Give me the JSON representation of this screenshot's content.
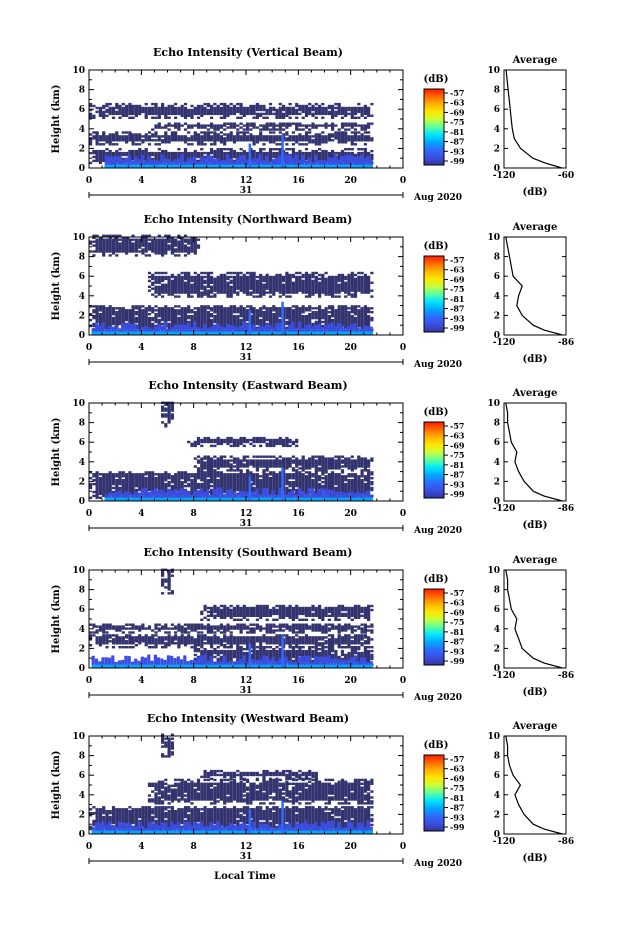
{
  "chart_data": {
    "type": "heatmap",
    "date_label": "Aug 2020",
    "day_label": "31",
    "xlabel_bottom": "Local Time",
    "colorbar": {
      "unit": "(dB)",
      "ticks": [
        "-57",
        "-63",
        "-69",
        "-75",
        "-81",
        "-87",
        "-93",
        "-99"
      ],
      "colors": [
        "#ff1a00",
        "#ff6a00",
        "#ffb300",
        "#ffe600",
        "#c8ff3c",
        "#5cff9e",
        "#00e5ff",
        "#00a8ff",
        "#2f6bff",
        "#3b4ee0",
        "#34369e"
      ]
    },
    "x_ticks": [
      "0",
      "4",
      "8",
      "12",
      "16",
      "20",
      "0"
    ],
    "y_ticks": [
      "0",
      "2",
      "4",
      "6",
      "8",
      "10"
    ],
    "xlim": [
      0,
      24
    ],
    "ylim": [
      0,
      10
    ],
    "panels": [
      {
        "title": "Echo Intensity (Vertical Beam)",
        "ylabel": "Height (km)",
        "avg_title": "Average",
        "avg_xticks": [
          "-120",
          "-60"
        ],
        "avg_xlabel": "(dB)",
        "avg_xlim": [
          -120,
          -60
        ],
        "layers": [
          [
            0.2,
            1.8,
            0,
            21.6
          ],
          [
            2.3,
            3.6,
            0,
            21.6
          ],
          [
            3.8,
            4.6,
            4.5,
            21.6
          ],
          [
            5.0,
            6.5,
            0,
            21.6
          ]
        ],
        "profile": [
          [
            0,
            -64
          ],
          [
            0.5,
            -80
          ],
          [
            1,
            -92
          ],
          [
            1.5,
            -98
          ],
          [
            2,
            -104
          ],
          [
            3,
            -110
          ],
          [
            4,
            -112
          ],
          [
            5,
            -113
          ],
          [
            6,
            -114
          ],
          [
            7,
            -115
          ],
          [
            8,
            -116
          ],
          [
            9,
            -117
          ],
          [
            10,
            -118
          ]
        ]
      },
      {
        "title": "Echo Intensity (Northward Beam)",
        "ylabel": "Height (km)",
        "avg_title": "Average",
        "avg_xticks": [
          "-120",
          "-86"
        ],
        "avg_xlabel": "(dB)",
        "avg_xlim": [
          -120,
          -86
        ],
        "layers": [
          [
            0.2,
            3.0,
            0,
            21.6
          ],
          [
            3.8,
            6.3,
            4.5,
            21.6
          ],
          [
            8.0,
            10,
            0,
            8.5
          ]
        ],
        "profile": [
          [
            0,
            -88
          ],
          [
            0.5,
            -98
          ],
          [
            1,
            -104
          ],
          [
            2,
            -110
          ],
          [
            3,
            -113
          ],
          [
            4,
            -112
          ],
          [
            5,
            -110
          ],
          [
            6,
            -115
          ],
          [
            7,
            -116
          ],
          [
            8,
            -117
          ],
          [
            9,
            -118
          ],
          [
            10,
            -119
          ]
        ]
      },
      {
        "title": "Echo Intensity (Eastward Beam)",
        "ylabel": "Height (km)",
        "avg_title": "Average",
        "avg_xticks": [
          "-120",
          "-86"
        ],
        "avg_xlabel": "(dB)",
        "avg_xlim": [
          -120,
          -86
        ],
        "layers": [
          [
            0.2,
            3.0,
            0,
            21.6
          ],
          [
            3.0,
            4.5,
            8.0,
            21.6
          ],
          [
            5.5,
            6.5,
            7.5,
            16
          ],
          [
            7.5,
            10,
            5.5,
            6.5
          ]
        ],
        "profile": [
          [
            0,
            -88
          ],
          [
            0.5,
            -98
          ],
          [
            1,
            -104
          ],
          [
            2,
            -109
          ],
          [
            3,
            -112
          ],
          [
            4,
            -114
          ],
          [
            5,
            -113
          ],
          [
            6,
            -116
          ],
          [
            7,
            -117
          ],
          [
            8,
            -118
          ],
          [
            9,
            -118
          ],
          [
            10,
            -119
          ]
        ]
      },
      {
        "title": "Echo Intensity (Southward Beam)",
        "ylabel": "Height (km)",
        "avg_title": "Average",
        "avg_xticks": [
          "-120",
          "-86"
        ],
        "avg_xlabel": "(dB)",
        "avg_xlim": [
          -120,
          -86
        ],
        "layers": [
          [
            0.2,
            2.0,
            8.0,
            21.6
          ],
          [
            2.0,
            3.4,
            0,
            21.6
          ],
          [
            3.5,
            4.5,
            0,
            21.6
          ],
          [
            4.8,
            6.4,
            8.5,
            21.6
          ],
          [
            7.5,
            10,
            5.5,
            6.5
          ]
        ],
        "profile": [
          [
            0,
            -88
          ],
          [
            0.5,
            -98
          ],
          [
            1,
            -104
          ],
          [
            2,
            -110
          ],
          [
            3,
            -112
          ],
          [
            4,
            -114
          ],
          [
            5,
            -113
          ],
          [
            6,
            -116
          ],
          [
            7,
            -117
          ],
          [
            8,
            -118
          ],
          [
            9,
            -118
          ],
          [
            10,
            -119
          ]
        ]
      },
      {
        "title": "Echo Intensity (Westward Beam)",
        "ylabel": "Height (km)",
        "avg_title": "Average",
        "avg_xticks": [
          "-120",
          "-86"
        ],
        "avg_xlabel": "(dB)",
        "avg_xlim": [
          -120,
          -86
        ],
        "layers": [
          [
            0.2,
            2.8,
            0,
            21.6
          ],
          [
            3.0,
            5.5,
            4.5,
            21.6
          ],
          [
            5.5,
            6.5,
            8.5,
            17.5
          ],
          [
            7.8,
            10,
            5.5,
            6.5
          ]
        ],
        "profile": [
          [
            0,
            -88
          ],
          [
            0.5,
            -98
          ],
          [
            1,
            -104
          ],
          [
            2,
            -109
          ],
          [
            3,
            -112
          ],
          [
            4,
            -114
          ],
          [
            5,
            -111
          ],
          [
            6,
            -115
          ],
          [
            7,
            -117
          ],
          [
            8,
            -118
          ],
          [
            9,
            -118
          ],
          [
            10,
            -119
          ]
        ]
      }
    ]
  }
}
